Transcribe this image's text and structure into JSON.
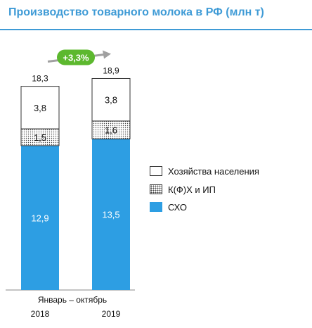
{
  "title": "Производство товарного молока в РФ (млн т)",
  "colors": {
    "accent": "#3f9bd6",
    "cxo": "#2d9ee3",
    "growth_badge": "#5cb82e",
    "arrow": "#a0a0a0"
  },
  "chart_data": {
    "type": "bar",
    "stacked": true,
    "title": "Производство товарного молока в РФ (млн т)",
    "xlabel": "Январь – октябрь",
    "categories": [
      "2018",
      "2019"
    ],
    "series": [
      {
        "name": "СХО",
        "values": [
          12.9,
          13.5
        ],
        "labels": [
          "12,9",
          "13,5"
        ]
      },
      {
        "name": "К(Ф)Х и ИП",
        "values": [
          1.5,
          1.6
        ],
        "labels": [
          "1,5",
          "1,6"
        ]
      },
      {
        "name": "Хозяйства населения",
        "values": [
          3.8,
          3.8
        ],
        "labels": [
          "3,8",
          "3,8"
        ]
      }
    ],
    "totals": [
      18.3,
      18.9
    ],
    "total_labels": [
      "18,3",
      "18,9"
    ],
    "growth_label": "+3,3%",
    "legend_position": "right"
  },
  "legend": [
    {
      "label": "Хозяйства населения",
      "style": "white"
    },
    {
      "label": "К(Ф)Х и ИП",
      "style": "dots"
    },
    {
      "label": "СХО",
      "style": "blue"
    }
  ]
}
